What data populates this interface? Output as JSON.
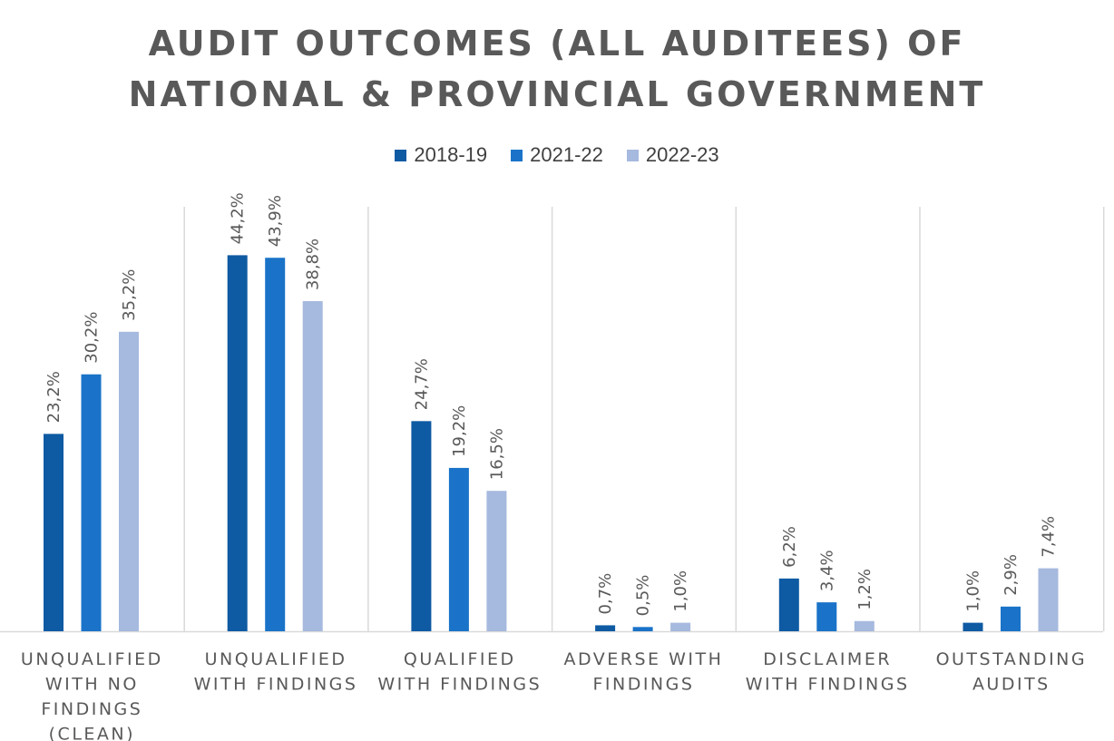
{
  "chart_data": {
    "type": "bar",
    "title_lines": [
      "AUDIT OUTCOMES (ALL AUDITEES) OF",
      "NATIONAL & PROVINCIAL GOVERNMENT"
    ],
    "categories": [
      [
        "UNQUALIFIED",
        "WITH NO",
        "FINDINGS",
        "(CLEAN)"
      ],
      [
        "UNQUALIFIED",
        "WITH FINDINGS"
      ],
      [
        "QUALIFIED",
        "WITH FINDINGS"
      ],
      [
        "ADVERSE WITH",
        "FINDINGS"
      ],
      [
        "DISCLAIMER",
        "WITH FINDINGS"
      ],
      [
        "OUTSTANDING",
        "AUDITS"
      ]
    ],
    "series": [
      {
        "name": "2018-19",
        "color": "#0e5aa3",
        "values": [
          23.2,
          44.2,
          24.7,
          0.7,
          6.2,
          1.0
        ],
        "labels": [
          "23,2%",
          "44,2%",
          "24,7%",
          "0,7%",
          "6,2%",
          "1,0%"
        ]
      },
      {
        "name": "2021-22",
        "color": "#1a73c8",
        "values": [
          30.2,
          43.9,
          19.2,
          0.5,
          3.4,
          2.9
        ],
        "labels": [
          "30,2%",
          "43,9%",
          "19,2%",
          "0,5%",
          "3,4%",
          "2,9%"
        ]
      },
      {
        "name": "2022-23",
        "color": "#a6b9de",
        "values": [
          35.2,
          38.8,
          16.5,
          1.0,
          1.2,
          7.4
        ],
        "labels": [
          "35,2%",
          "38,8%",
          "16,5%",
          "1,0%",
          "1,2%",
          "7,4%"
        ]
      }
    ],
    "ylim": [
      0,
      50
    ],
    "xlabel": "",
    "ylabel": "",
    "legend_position": "top-center",
    "grid": false
  }
}
